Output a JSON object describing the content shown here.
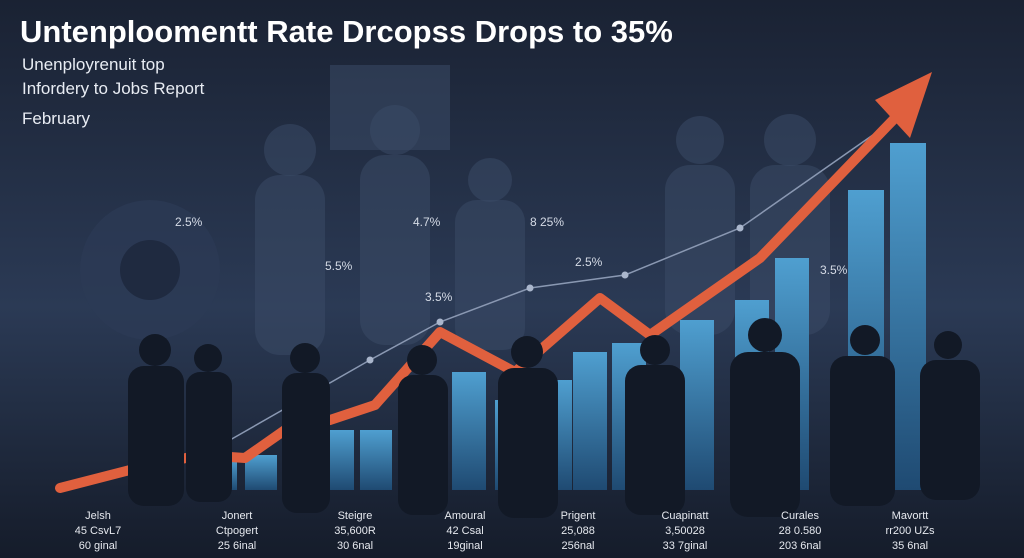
{
  "header": {
    "title": "Untenploomentt Rate Drcopss Drops to 35%",
    "subtitle": [
      "Unenployrenuit top",
      "Infordery to Jobs Report",
      "February"
    ]
  },
  "annotations": [
    "2.5%",
    "4.7%",
    "8 25%",
    "5.5%",
    "2.5%",
    "3.5%",
    "3.5%"
  ],
  "columns": [
    {
      "lines": [
        "Jelsh",
        "45 CsvL7",
        "60 ginal"
      ]
    },
    {
      "lines": [
        "Jonert",
        "Ctpogert",
        "25 6inal"
      ]
    },
    {
      "lines": [
        "Steigre",
        "35,600R",
        "30 6nal"
      ]
    },
    {
      "lines": [
        "Amoural",
        "42 Csal",
        "19ginal"
      ]
    },
    {
      "lines": [
        "Prigent",
        "25,088",
        "256nal"
      ]
    },
    {
      "lines": [
        "Cuapinatt",
        "3,50028",
        "33 7ginal"
      ]
    },
    {
      "lines": [
        "Curales",
        "28 0.580",
        "203 6nal"
      ]
    },
    {
      "lines": [
        "Mavortt",
        "rr200 UZs",
        "35 6nal"
      ]
    }
  ]
}
